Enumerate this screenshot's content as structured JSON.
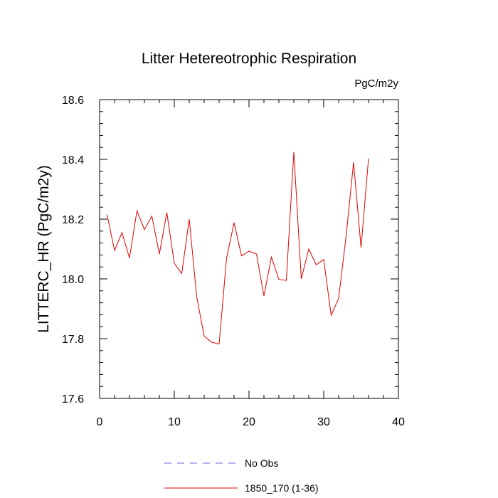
{
  "chart_data": {
    "type": "line",
    "title": "Litter Hetereotrophic Respiration",
    "units_label": "PgC/m2y",
    "ylabel": "LITTERC_HR  (PgC/m2y)",
    "xlabel": "",
    "xlim": [
      0,
      40
    ],
    "ylim": [
      17.6,
      18.6
    ],
    "x_ticks": [
      0,
      10,
      20,
      30,
      40
    ],
    "x_tick_labels": [
      "0",
      "10",
      "20",
      "30",
      "40"
    ],
    "y_ticks": [
      17.6,
      17.8,
      18.0,
      18.2,
      18.4,
      18.6
    ],
    "y_tick_labels": [
      "17.6",
      "17.8",
      "18.0",
      "18.2",
      "18.4",
      "18.6"
    ],
    "grid": false,
    "legend_position": "bottom-center",
    "series": [
      {
        "name": "No Obs",
        "color": "#6a6ae0",
        "dash": "dashed",
        "x": [],
        "values": []
      },
      {
        "name": "1850_170 (1-36)",
        "color": "#e00000",
        "dash": "solid",
        "x": [
          1,
          2,
          3,
          4,
          5,
          6,
          7,
          8,
          9,
          10,
          11,
          12,
          13,
          14,
          15,
          16,
          17,
          18,
          19,
          20,
          21,
          22,
          23,
          24,
          25,
          26,
          27,
          28,
          29,
          30,
          31,
          32,
          33,
          34,
          35,
          36
        ],
        "values": [
          18.215,
          18.095,
          18.155,
          18.07,
          18.228,
          18.165,
          18.21,
          18.083,
          18.222,
          18.052,
          18.018,
          18.2,
          17.94,
          17.808,
          17.788,
          17.782,
          18.07,
          18.188,
          18.077,
          18.093,
          18.083,
          17.943,
          18.073,
          17.998,
          17.995,
          18.425,
          18.0,
          18.1,
          18.047,
          18.065,
          17.878,
          17.935,
          18.143,
          18.39,
          18.105,
          18.403
        ]
      }
    ]
  }
}
